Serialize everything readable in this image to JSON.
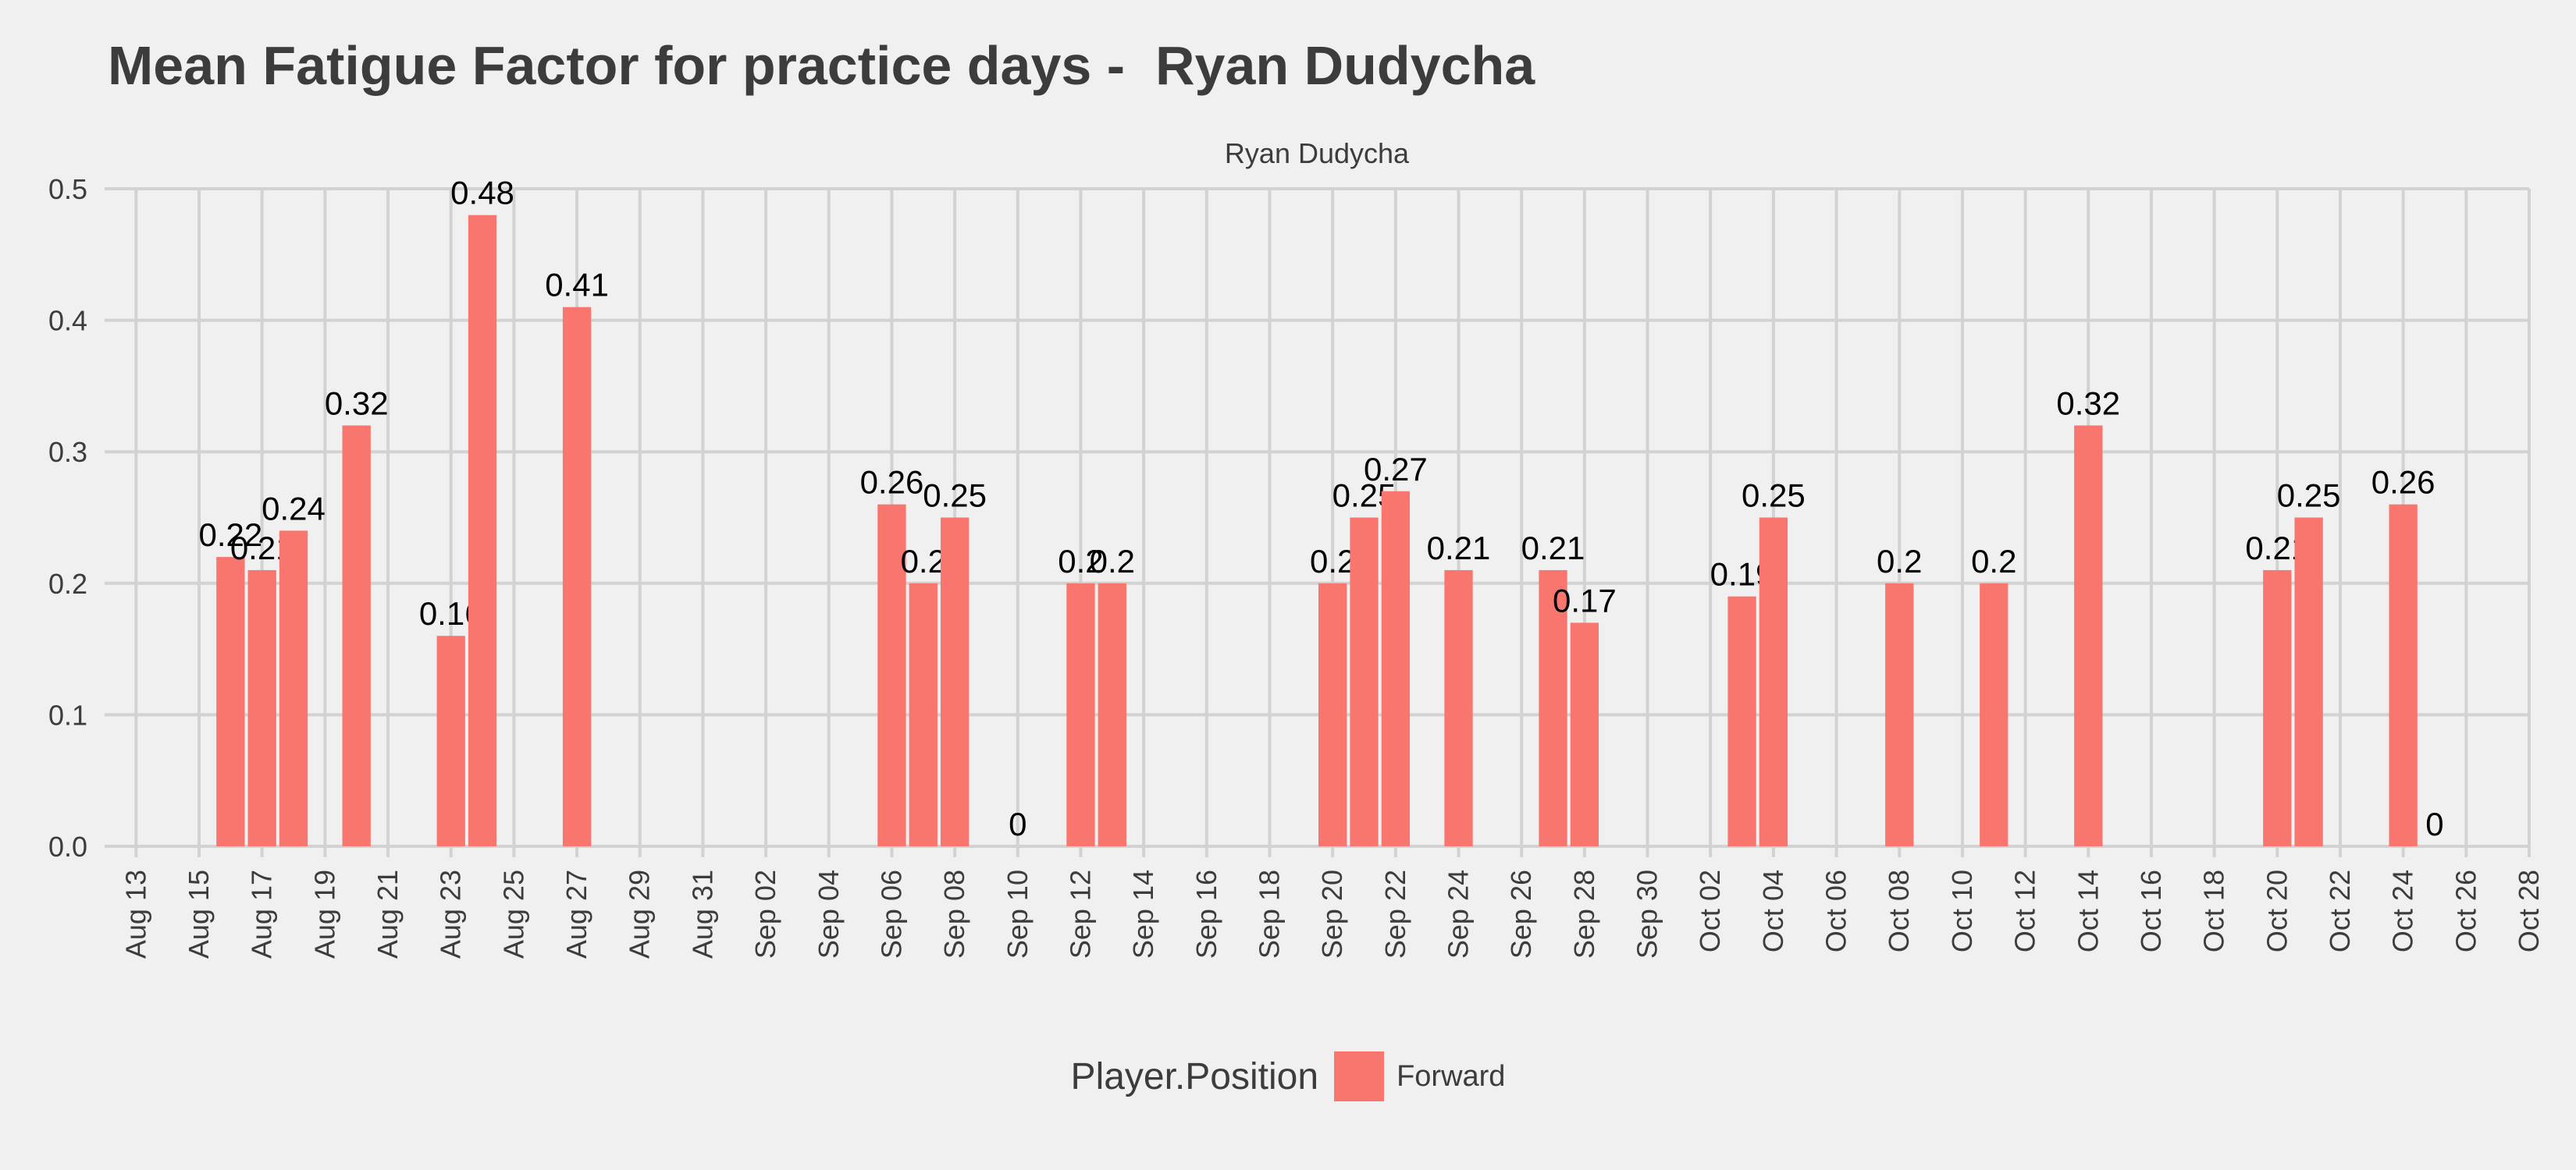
{
  "chart_data": {
    "type": "bar",
    "title": "Mean Fatigue Factor for practice days -  Ryan Dudycha",
    "facet_label": "Ryan Dudycha",
    "xlabel": "",
    "ylabel": "",
    "ylim": [
      0,
      0.5
    ],
    "xlim": [
      "2017-08-12",
      "2017-10-28"
    ],
    "y_ticks": [
      "0.0",
      "0.1",
      "0.2",
      "0.3",
      "0.4",
      "0.5"
    ],
    "x_ticks": [
      {
        "date": "2017-08-13",
        "label": "Aug 13"
      },
      {
        "date": "2017-08-15",
        "label": "Aug 15"
      },
      {
        "date": "2017-08-17",
        "label": "Aug 17"
      },
      {
        "date": "2017-08-19",
        "label": "Aug 19"
      },
      {
        "date": "2017-08-21",
        "label": "Aug 21"
      },
      {
        "date": "2017-08-23",
        "label": "Aug 23"
      },
      {
        "date": "2017-08-25",
        "label": "Aug 25"
      },
      {
        "date": "2017-08-27",
        "label": "Aug 27"
      },
      {
        "date": "2017-08-29",
        "label": "Aug 29"
      },
      {
        "date": "2017-08-31",
        "label": "Aug 31"
      },
      {
        "date": "2017-09-02",
        "label": "Sep 02"
      },
      {
        "date": "2017-09-04",
        "label": "Sep 04"
      },
      {
        "date": "2017-09-06",
        "label": "Sep 06"
      },
      {
        "date": "2017-09-08",
        "label": "Sep 08"
      },
      {
        "date": "2017-09-10",
        "label": "Sep 10"
      },
      {
        "date": "2017-09-12",
        "label": "Sep 12"
      },
      {
        "date": "2017-09-14",
        "label": "Sep 14"
      },
      {
        "date": "2017-09-16",
        "label": "Sep 16"
      },
      {
        "date": "2017-09-18",
        "label": "Sep 18"
      },
      {
        "date": "2017-09-20",
        "label": "Sep 20"
      },
      {
        "date": "2017-09-22",
        "label": "Sep 22"
      },
      {
        "date": "2017-09-24",
        "label": "Sep 24"
      },
      {
        "date": "2017-09-26",
        "label": "Sep 26"
      },
      {
        "date": "2017-09-28",
        "label": "Sep 28"
      },
      {
        "date": "2017-09-30",
        "label": "Sep 30"
      },
      {
        "date": "2017-10-02",
        "label": "Oct 02"
      },
      {
        "date": "2017-10-04",
        "label": "Oct 04"
      },
      {
        "date": "2017-10-06",
        "label": "Oct 06"
      },
      {
        "date": "2017-10-08",
        "label": "Oct 08"
      },
      {
        "date": "2017-10-10",
        "label": "Oct 10"
      },
      {
        "date": "2017-10-12",
        "label": "Oct 12"
      },
      {
        "date": "2017-10-14",
        "label": "Oct 14"
      },
      {
        "date": "2017-10-16",
        "label": "Oct 16"
      },
      {
        "date": "2017-10-18",
        "label": "Oct 18"
      },
      {
        "date": "2017-10-20",
        "label": "Oct 20"
      },
      {
        "date": "2017-10-22",
        "label": "Oct 22"
      },
      {
        "date": "2017-10-24",
        "label": "Oct 24"
      },
      {
        "date": "2017-10-26",
        "label": "Oct 26"
      },
      {
        "date": "2017-10-28",
        "label": "Oct 28"
      }
    ],
    "series": [
      {
        "name": "Forward",
        "color": "#F8766D",
        "points": [
          {
            "date": "2017-08-16",
            "value": 0.22,
            "label": "0.22"
          },
          {
            "date": "2017-08-17",
            "value": 0.21,
            "label": "0.21"
          },
          {
            "date": "2017-08-18",
            "value": 0.24,
            "label": "0.24"
          },
          {
            "date": "2017-08-20",
            "value": 0.32,
            "label": "0.32"
          },
          {
            "date": "2017-08-23",
            "value": 0.16,
            "label": "0.16"
          },
          {
            "date": "2017-08-24",
            "value": 0.48,
            "label": "0.48"
          },
          {
            "date": "2017-08-27",
            "value": 0.41,
            "label": "0.41"
          },
          {
            "date": "2017-09-06",
            "value": 0.26,
            "label": "0.26"
          },
          {
            "date": "2017-09-07",
            "value": 0.2,
            "label": "0.2"
          },
          {
            "date": "2017-09-08",
            "value": 0.25,
            "label": "0.25"
          },
          {
            "date": "2017-09-10",
            "value": 0.0,
            "label": "0"
          },
          {
            "date": "2017-09-12",
            "value": 0.2,
            "label": "0.2"
          },
          {
            "date": "2017-09-13",
            "value": 0.2,
            "label": "0.2"
          },
          {
            "date": "2017-09-20",
            "value": 0.2,
            "label": "0.2"
          },
          {
            "date": "2017-09-21",
            "value": 0.25,
            "label": "0.25"
          },
          {
            "date": "2017-09-22",
            "value": 0.27,
            "label": "0.27"
          },
          {
            "date": "2017-09-24",
            "value": 0.21,
            "label": "0.21"
          },
          {
            "date": "2017-09-27",
            "value": 0.21,
            "label": "0.21"
          },
          {
            "date": "2017-09-28",
            "value": 0.17,
            "label": "0.17"
          },
          {
            "date": "2017-10-03",
            "value": 0.19,
            "label": "0.19"
          },
          {
            "date": "2017-10-04",
            "value": 0.25,
            "label": "0.25"
          },
          {
            "date": "2017-10-08",
            "value": 0.2,
            "label": "0.2"
          },
          {
            "date": "2017-10-11",
            "value": 0.2,
            "label": "0.2"
          },
          {
            "date": "2017-10-14",
            "value": 0.32,
            "label": "0.32"
          },
          {
            "date": "2017-10-20",
            "value": 0.21,
            "label": "0.21"
          },
          {
            "date": "2017-10-21",
            "value": 0.25,
            "label": "0.25"
          },
          {
            "date": "2017-10-24",
            "value": 0.26,
            "label": "0.26"
          },
          {
            "date": "2017-10-25",
            "value": 0.0,
            "label": "0"
          }
        ]
      }
    ],
    "grid": true,
    "legend": {
      "position": "bottom",
      "title": "Player.Position",
      "entries": [
        "Forward"
      ]
    },
    "colors": {
      "background": "#F0F0F0",
      "grid": "#D2D2D2",
      "text": "#3C3C3C",
      "bar": "#F8766D"
    }
  }
}
